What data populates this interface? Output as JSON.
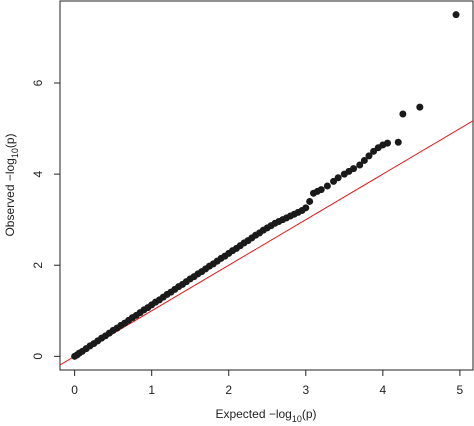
{
  "chart_data": {
    "type": "scatter",
    "x_label": [
      "Expected −log",
      "10",
      "(p)"
    ],
    "y_label": [
      "Observed −log",
      "10",
      "(p)"
    ],
    "x": [
      0,
      0.03,
      0.06,
      0.1,
      0.15,
      0.2,
      0.25,
      0.3,
      0.35,
      0.4,
      0.45,
      0.5,
      0.55,
      0.6,
      0.65,
      0.7,
      0.75,
      0.8,
      0.85,
      0.9,
      0.95,
      1.0,
      1.05,
      1.1,
      1.15,
      1.2,
      1.25,
      1.3,
      1.35,
      1.4,
      1.45,
      1.5,
      1.55,
      1.6,
      1.65,
      1.7,
      1.75,
      1.8,
      1.85,
      1.9,
      1.95,
      2.0,
      2.05,
      2.1,
      2.15,
      2.2,
      2.25,
      2.3,
      2.35,
      2.4,
      2.45,
      2.5,
      2.55,
      2.6,
      2.65,
      2.7,
      2.75,
      2.8,
      2.85,
      2.9,
      2.95,
      3.0,
      3.05,
      3.1,
      3.15,
      3.2,
      3.28,
      3.36,
      3.42,
      3.5,
      3.56,
      3.62,
      3.7,
      3.76,
      3.82,
      3.88,
      3.94,
      4.0,
      4.06,
      4.2,
      4.26,
      4.48,
      4.95
    ],
    "values": [
      0,
      0.03,
      0.07,
      0.11,
      0.17,
      0.23,
      0.28,
      0.34,
      0.4,
      0.45,
      0.51,
      0.57,
      0.62,
      0.68,
      0.73,
      0.79,
      0.85,
      0.9,
      0.96,
      1.02,
      1.07,
      1.13,
      1.19,
      1.24,
      1.3,
      1.36,
      1.41,
      1.47,
      1.53,
      1.58,
      1.64,
      1.7,
      1.75,
      1.81,
      1.86,
      1.92,
      1.98,
      2.03,
      2.09,
      2.15,
      2.2,
      2.26,
      2.32,
      2.37,
      2.43,
      2.49,
      2.54,
      2.6,
      2.66,
      2.71,
      2.77,
      2.82,
      2.87,
      2.92,
      2.96,
      3.0,
      3.04,
      3.08,
      3.12,
      3.16,
      3.2,
      3.26,
      3.4,
      3.58,
      3.62,
      3.66,
      3.74,
      3.84,
      3.92,
      4.0,
      4.06,
      4.12,
      4.2,
      4.3,
      4.4,
      4.5,
      4.58,
      4.64,
      4.68,
      4.7,
      5.32,
      5.47,
      7.5
    ],
    "color": "#1a1a1a",
    "reference_line": {
      "slope": 1,
      "intercept": 0,
      "color": "#e41a1c"
    },
    "xlim": [
      -0.19,
      5.17
    ],
    "ylim": [
      -0.3,
      7.8
    ],
    "xticks": [
      0,
      1,
      2,
      3,
      4,
      5
    ],
    "yticks": [
      0,
      2,
      4,
      6
    ]
  }
}
